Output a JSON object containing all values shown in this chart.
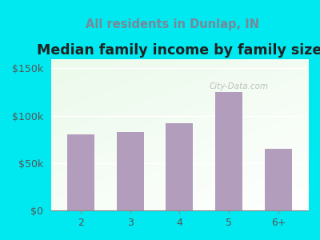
{
  "title": "Median family income by family size",
  "subtitle": "All residents in Dunlap, IN",
  "categories": [
    "2",
    "3",
    "4",
    "5",
    "6+"
  ],
  "values": [
    80000,
    83000,
    92000,
    125000,
    65000
  ],
  "bar_color": "#b39dbd",
  "title_fontsize": 12.5,
  "subtitle_fontsize": 10.5,
  "subtitle_color": "#778899",
  "tick_label_fontsize": 9,
  "background_outer": "#00e8f0",
  "ylim": [
    0,
    160000
  ],
  "yticks": [
    0,
    50000,
    100000,
    150000
  ],
  "ytick_labels": [
    "$0",
    "$50k",
    "$100k",
    "$150k"
  ],
  "watermark": "City-Data.com"
}
